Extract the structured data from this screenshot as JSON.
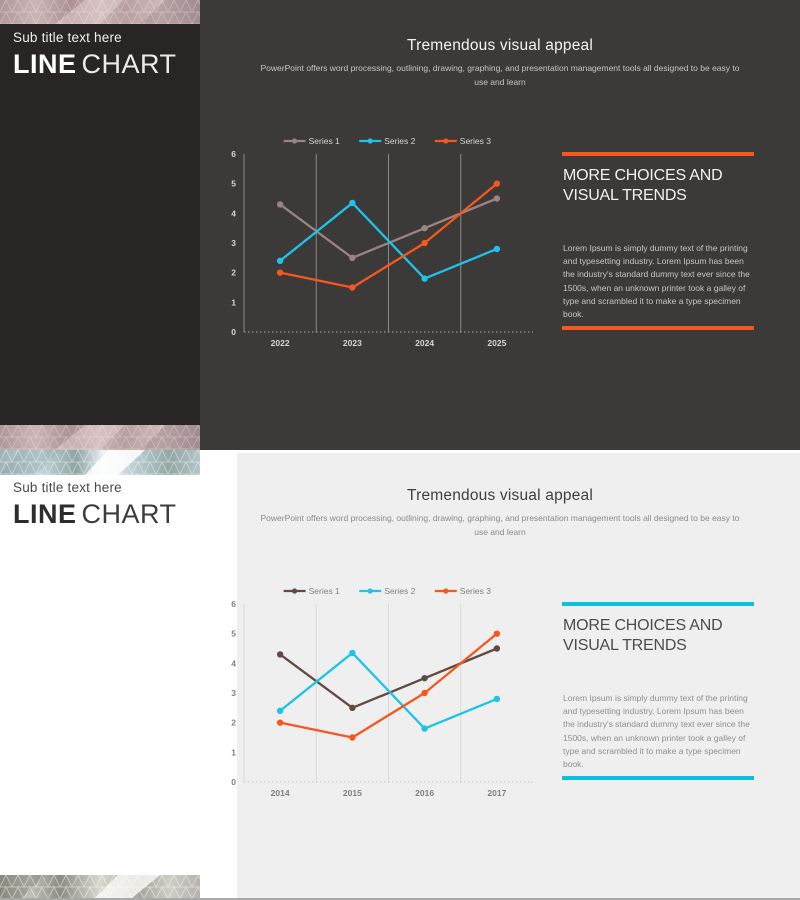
{
  "chart_data": [
    {
      "type": "line",
      "title": "Tremendous visual appeal",
      "categories": [
        "2022",
        "2023",
        "2024",
        "2025"
      ],
      "series": [
        {
          "name": "Series 1",
          "color": "#9b8383",
          "values": [
            4.3,
            2.5,
            3.5,
            4.5
          ]
        },
        {
          "name": "Series 2",
          "color": "#1ec4e8",
          "values": [
            2.4,
            4.35,
            1.8,
            2.8
          ]
        },
        {
          "name": "Series 3",
          "color": "#f4581e",
          "values": [
            2.0,
            1.5,
            3.0,
            5.0
          ]
        }
      ],
      "ylim": [
        0,
        6
      ],
      "yticks": [
        0,
        1,
        2,
        3,
        4,
        5,
        6
      ],
      "legend_position": "top",
      "grid": "vertical",
      "style": {
        "axis_text": "#d6d4d4",
        "grid": "#8c8989",
        "baseline": "#a9a7a7"
      }
    },
    {
      "type": "line",
      "title": "Tremendous visual appeal",
      "categories": [
        "2014",
        "2015",
        "2016",
        "2017"
      ],
      "series": [
        {
          "name": "Series 1",
          "color": "#604a43",
          "values": [
            4.3,
            2.5,
            3.5,
            4.5
          ]
        },
        {
          "name": "Series 2",
          "color": "#1ec4e8",
          "values": [
            2.4,
            4.35,
            1.8,
            2.8
          ]
        },
        {
          "name": "Series 3",
          "color": "#f4581e",
          "values": [
            2.0,
            1.5,
            3.0,
            5.0
          ]
        }
      ],
      "ylim": [
        0,
        6
      ],
      "yticks": [
        0,
        1,
        2,
        3,
        4,
        5,
        6
      ],
      "legend_position": "top",
      "grid": "vertical",
      "style": {
        "axis_text": "#7f7f7f",
        "grid": "#d9d9d9",
        "baseline": "#c3c3c3"
      }
    }
  ],
  "slides": [
    {
      "theme": "dark",
      "sidebar": {
        "subtitle": "Sub title text here",
        "title_primary": "LINE",
        "title_secondary": "CHART"
      },
      "header": {
        "title": "Tremendous visual appeal",
        "subtitle": "PowerPoint offers word processing, outlining, drawing, graphing, and presentation management tools all designed to be easy to use and learn"
      },
      "panel": {
        "heading": "MORE CHOICES AND VISUAL TRENDS",
        "body": "Lorem Ipsum is simply dummy text of the printing and typesetting industry. Lorem Ipsum has been the industry's standard dummy text ever since the 1500s, when an unknown printer took a galley of type and scrambled it to make a type specimen book.",
        "accent_color": "#f4581e"
      }
    },
    {
      "theme": "light",
      "sidebar": {
        "subtitle": "Sub title text here",
        "title_primary": "LINE",
        "title_secondary": "CHART"
      },
      "header": {
        "title": "Tremendous visual appeal",
        "subtitle": "PowerPoint offers word processing, outlining, drawing, graphing, and presentation management tools all designed to be easy to use and learn"
      },
      "panel": {
        "heading": "MORE CHOICES AND VISUAL TRENDS",
        "body": "Lorem Ipsum is simply dummy text of the printing and typesetting industry. Lorem Ipsum has been the industry's standard dummy text ever since the 1500s, when an unknown printer took a galley of type and scrambled it to make a type specimen book.",
        "accent_color": "#0bc0de"
      }
    }
  ]
}
